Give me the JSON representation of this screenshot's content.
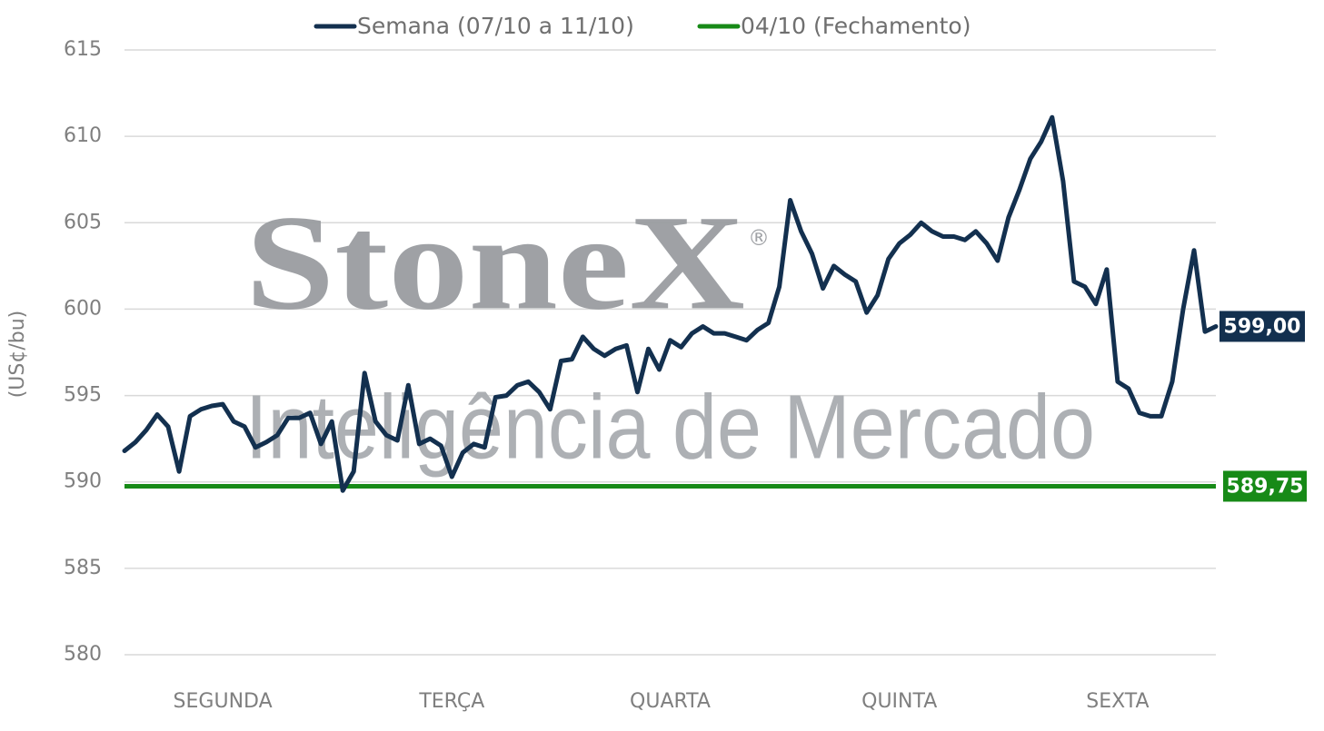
{
  "chart_data": {
    "type": "line",
    "y_label": "(US¢/bu)",
    "watermark": {
      "brand": "StoneX",
      "mark": "®",
      "tagline": "Inteligência de Mercado"
    },
    "categories": [
      null,
      null,
      null,
      null,
      null,
      null,
      null,
      null,
      null,
      "SEGUNDA",
      null,
      null,
      null,
      null,
      null,
      null,
      null,
      null,
      null,
      null,
      null,
      null,
      null,
      null,
      null,
      null,
      null,
      null,
      null,
      null,
      "TERÇA",
      null,
      null,
      null,
      null,
      null,
      null,
      null,
      null,
      null,
      null,
      null,
      null,
      null,
      null,
      null,
      null,
      null,
      null,
      null,
      "QUARTA",
      null,
      null,
      null,
      null,
      null,
      null,
      null,
      null,
      null,
      null,
      null,
      null,
      null,
      null,
      null,
      null,
      null,
      null,
      null,
      null,
      "QUINTA",
      null,
      null,
      null,
      null,
      null,
      null,
      null,
      null,
      null,
      null,
      null,
      null,
      null,
      null,
      null,
      null,
      null,
      null,
      null,
      "SEXTA",
      null,
      null,
      null,
      null,
      null,
      null,
      null,
      null,
      null
    ],
    "series": [
      {
        "name": "Semana (07/10 a 11/10)",
        "color": "#13304f",
        "values": [
          591.8,
          592.3,
          593.0,
          593.9,
          593.2,
          590.6,
          593.8,
          594.2,
          594.4,
          594.5,
          593.5,
          593.2,
          592.0,
          592.3,
          592.7,
          593.7,
          593.7,
          594.0,
          592.2,
          593.5,
          589.5,
          590.6,
          596.3,
          593.5,
          592.7,
          592.4,
          595.6,
          592.2,
          592.5,
          592.1,
          590.3,
          591.7,
          592.2,
          592.0,
          594.9,
          595.0,
          595.6,
          595.8,
          595.2,
          594.2,
          597.0,
          597.1,
          598.4,
          597.7,
          597.3,
          597.7,
          597.9,
          595.2,
          597.7,
          596.5,
          598.2,
          597.8,
          598.6,
          599.0,
          598.6,
          598.6,
          598.4,
          598.2,
          598.8,
          599.2,
          601.3,
          606.3,
          604.5,
          603.2,
          601.2,
          602.5,
          602.0,
          601.6,
          599.8,
          600.8,
          602.9,
          603.8,
          604.3,
          605.0,
          604.5,
          604.2,
          604.2,
          604.0,
          604.5,
          603.8,
          602.8,
          605.3,
          606.9,
          608.7,
          609.7,
          611.1,
          607.4,
          601.6,
          601.3,
          600.3,
          602.3,
          595.8,
          595.4,
          594.0,
          593.8,
          593.8,
          595.8,
          600.0,
          603.4,
          598.7,
          599.0
        ],
        "value_labels": [
          null,
          null,
          null,
          null,
          null,
          null,
          null,
          null,
          null,
          null,
          null,
          null,
          null,
          null,
          null,
          null,
          null,
          null,
          null,
          null,
          null,
          null,
          null,
          null,
          null,
          null,
          null,
          null,
          null,
          null,
          null,
          null,
          null,
          null,
          null,
          null,
          null,
          null,
          null,
          null,
          null,
          null,
          null,
          null,
          null,
          null,
          null,
          null,
          null,
          null,
          null,
          null,
          null,
          null,
          null,
          null,
          null,
          null,
          null,
          null,
          null,
          null,
          null,
          null,
          null,
          null,
          null,
          null,
          null,
          null,
          null,
          null,
          null,
          null,
          null,
          null,
          null,
          null,
          null,
          null,
          null,
          null,
          null,
          null,
          null,
          null,
          null,
          null,
          null,
          null,
          null,
          null,
          null,
          null,
          null,
          null,
          null,
          null,
          null,
          null,
          "599,00"
        ]
      }
    ],
    "reference": {
      "name": "04/10 (Fechamento)",
      "color": "#178a17",
      "value": 589.75,
      "value_label": "589,75"
    },
    "ylim": [
      580,
      615
    ],
    "yticks": [
      580,
      585,
      590,
      595,
      600,
      605,
      610,
      615
    ],
    "grid": true
  }
}
